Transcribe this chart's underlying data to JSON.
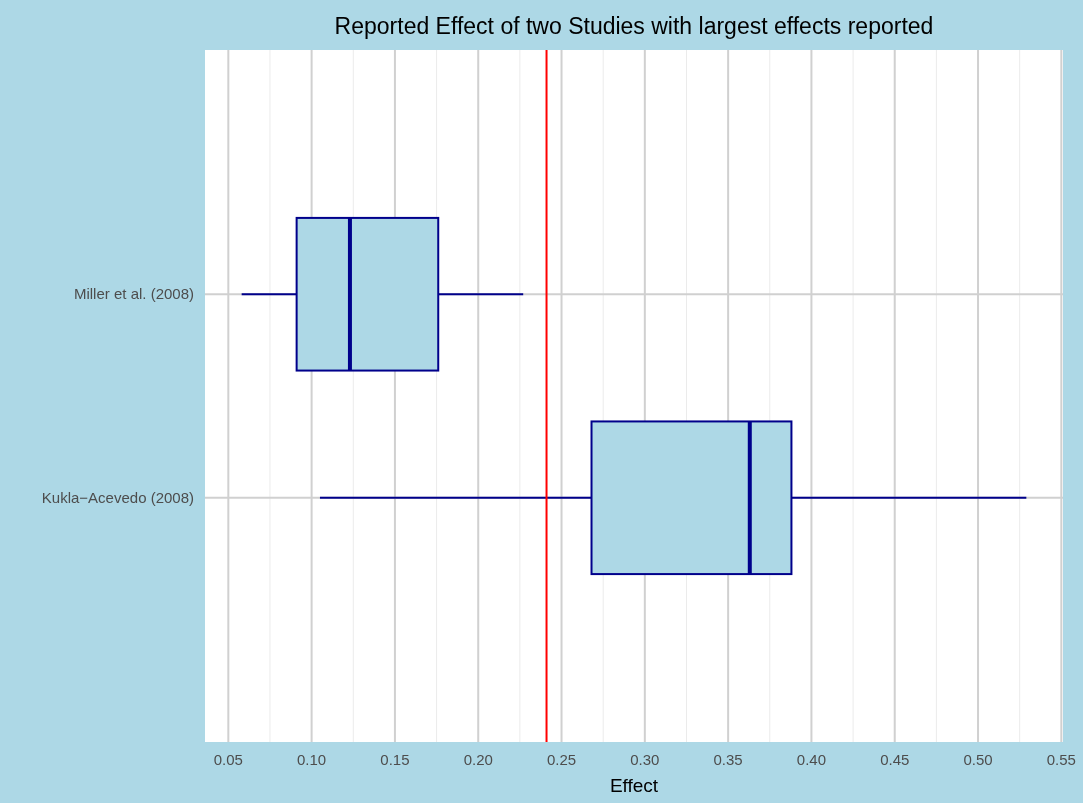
{
  "chart_data": {
    "type": "box",
    "orientation": "horizontal",
    "title": "Reported Effect of two Studies with largest effects reported",
    "xlabel": "Effect",
    "categories": [
      "Miller et al. (2008)",
      "Kukla−Acevedo (2008)"
    ],
    "boxes": [
      {
        "low": 0.058,
        "q1": 0.091,
        "median": 0.123,
        "q3": 0.176,
        "high": 0.227
      },
      {
        "low": 0.105,
        "q1": 0.268,
        "median": 0.363,
        "q3": 0.388,
        "high": 0.529
      }
    ],
    "color": "#add8e6",
    "xlim": [
      0.036,
      0.551
    ],
    "xticks": [
      {
        "value": 0.05,
        "label": "0.05"
      },
      {
        "value": 0.1,
        "label": "0.10"
      },
      {
        "value": 0.15,
        "label": "0.15"
      },
      {
        "value": 0.2,
        "label": "0.20"
      },
      {
        "value": 0.25,
        "label": "0.25"
      },
      {
        "value": 0.3,
        "label": "0.30"
      },
      {
        "value": 0.35,
        "label": "0.35"
      },
      {
        "value": 0.4,
        "label": "0.40"
      },
      {
        "value": 0.45,
        "label": "0.45"
      },
      {
        "value": 0.5,
        "label": "0.50"
      },
      {
        "value": 0.55,
        "label": "0.55"
      }
    ],
    "ref_lines": [
      {
        "axis": "x",
        "value": 0.241,
        "color": "#ff0000"
      }
    ],
    "grid": true
  }
}
